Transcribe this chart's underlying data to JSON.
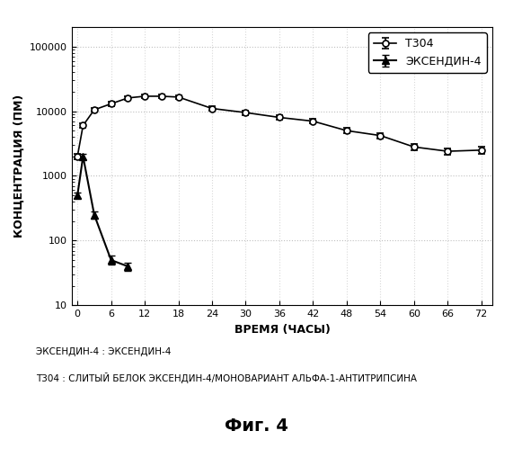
{
  "title": "",
  "xlabel": "ВРЕМЯ (ЧАСЫ)",
  "ylabel": "КОНЦЕНТРАЦИЯ (ПМ)",
  "t304_x": [
    0,
    1,
    3,
    6,
    9,
    12,
    15,
    18,
    24,
    30,
    36,
    42,
    48,
    54,
    60,
    66,
    72
  ],
  "t304_y": [
    2000,
    6000,
    10500,
    13000,
    16000,
    17000,
    17000,
    16500,
    11000,
    9500,
    8000,
    7000,
    5000,
    4200,
    2800,
    2400,
    2500
  ],
  "t304_yerr": [
    200,
    500,
    800,
    1000,
    1200,
    1300,
    1300,
    1300,
    900,
    800,
    700,
    600,
    450,
    400,
    300,
    250,
    300
  ],
  "exendin4_x": [
    0,
    1,
    3,
    6,
    9
  ],
  "exendin4_y": [
    500,
    2000,
    250,
    50,
    40
  ],
  "exendin4_yerr": [
    50,
    200,
    30,
    8,
    6
  ],
  "legend_t304": "Т304",
  "legend_exendin4": "ЭКСЕНДИН-4",
  "caption_line1": "ЭКСЕНДИН-4 : ЭКСЕНДИН-4",
  "caption_line2": "Т304 : СЛИТЫЙ БЕЛОК ЭКСЕНДИН-4/МОНОВАРИАНТ АЛЬФА-1-АНТИТРИПСИНА",
  "fig_label": "Фиг. 4",
  "color": "#000000",
  "bg_color": "#ffffff",
  "ylim": [
    10,
    200000
  ],
  "xlim": [
    -1,
    74
  ],
  "xticks": [
    0,
    6,
    12,
    18,
    24,
    30,
    36,
    42,
    48,
    54,
    60,
    66,
    72
  ]
}
